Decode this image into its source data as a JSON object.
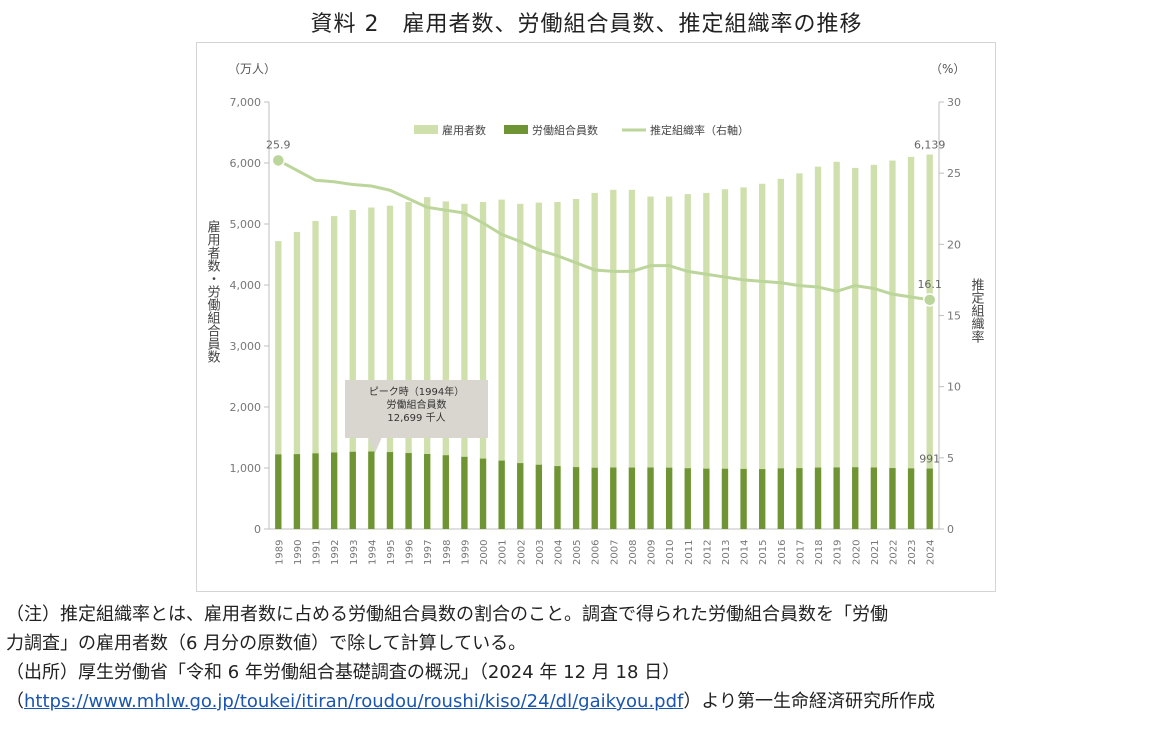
{
  "title": "資料 2　雇用者数、労働組合員数、推定組織率の推移",
  "chart_data": {
    "type": "bar",
    "x": [
      "1989",
      "1990",
      "1991",
      "1992",
      "1993",
      "1994",
      "1995",
      "1996",
      "1997",
      "1998",
      "1999",
      "2000",
      "2001",
      "2002",
      "2003",
      "2004",
      "2005",
      "2006",
      "2007",
      "2008",
      "2009",
      "2010",
      "2011",
      "2012",
      "2013",
      "2014",
      "2015",
      "2016",
      "2017",
      "2018",
      "2019",
      "2020",
      "2021",
      "2022",
      "2023",
      "2024"
    ],
    "series": [
      {
        "name": "雇用者数",
        "kind": "bar",
        "axis": "left",
        "color": "#cfe0ad",
        "values": [
          4720,
          4870,
          5050,
          5130,
          5230,
          5270,
          5300,
          5360,
          5440,
          5370,
          5330,
          5360,
          5400,
          5330,
          5350,
          5360,
          5410,
          5510,
          5560,
          5560,
          5450,
          5450,
          5490,
          5510,
          5570,
          5600,
          5660,
          5740,
          5830,
          5940,
          6020,
          5920,
          5970,
          6040,
          6100,
          6139
        ]
      },
      {
        "name": "労働組合員数",
        "kind": "bar",
        "axis": "left",
        "color": "#6e9433",
        "values": [
          1223,
          1227,
          1240,
          1254,
          1266,
          1270,
          1261,
          1245,
          1229,
          1209,
          1183,
          1154,
          1121,
          1080,
          1053,
          1031,
          1014,
          1004,
          1008,
          1007,
          1008,
          1005,
          996,
          989,
          988,
          985,
          982,
          994,
          998,
          1007,
          1009,
          1012,
          1008,
          999,
          994,
          991
        ]
      },
      {
        "name": "推定組織率（右軸）",
        "kind": "line",
        "axis": "right",
        "color": "#bcd59a",
        "values": [
          25.9,
          25.2,
          24.5,
          24.4,
          24.2,
          24.1,
          23.8,
          23.2,
          22.6,
          22.4,
          22.2,
          21.5,
          20.7,
          20.2,
          19.6,
          19.2,
          18.7,
          18.2,
          18.1,
          18.1,
          18.5,
          18.5,
          18.1,
          17.9,
          17.7,
          17.5,
          17.4,
          17.3,
          17.1,
          17.0,
          16.7,
          17.1,
          16.9,
          16.5,
          16.3,
          16.1
        ]
      }
    ],
    "y_left": {
      "unit": "（万人）",
      "label": "雇用者数・労働組合員数",
      "ylim": [
        0,
        7000
      ],
      "ticks": [
        "0",
        "1,000",
        "2,000",
        "3,000",
        "4,000",
        "5,000",
        "6,000",
        "7,000"
      ]
    },
    "y_right": {
      "unit": "（%）",
      "label": "推定組織率",
      "ylim": [
        0,
        30
      ],
      "ticks": [
        "0",
        "5",
        "10",
        "15",
        "20",
        "25",
        "30"
      ]
    },
    "annotations": {
      "first_rate": "25.9",
      "last_rate": "16.1",
      "last_employees": "6,139",
      "last_union": "991",
      "callout": [
        "ピーク時（1994年）",
        "労働組合員数",
        "12,699 千人"
      ]
    },
    "legend_position": "top-center",
    "grid": false
  },
  "notes": {
    "note_1": "（注）推定組織率とは、雇用者数に占める労働組合員数の割合のこと。調査で得られた労働組合員数を「労働",
    "note_2": "力調査」の雇用者数（6 月分の原数値）で除して計算している。",
    "source_1": "（出所）厚生労働省「令和 6 年労働組合基礎調査の概況」（2024 年 12 月 18 日）",
    "source_2_prefix": "（",
    "source_url": "https://www.mhlw.go.jp/toukei/itiran/roudou/roushi/kiso/24/dl/gaikyou.pdf",
    "source_2_suffix": "）より第一生命経済研究所作成"
  }
}
